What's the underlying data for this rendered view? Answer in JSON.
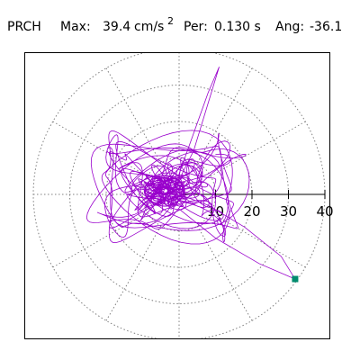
{
  "header": {
    "station": "PRCH",
    "max_label": "Max:",
    "max_value": "39.4",
    "max_unit": "cm/s",
    "max_unit_exp": "2",
    "per_label": "Per:",
    "per_value": "0.130 s",
    "ang_label": "Ang:",
    "ang_value": "-36.1"
  },
  "chart_data": {
    "type": "scatter",
    "title": "",
    "xlabel": "",
    "ylabel": "",
    "plot_kind": "polar particle-motion (hodogram)",
    "rlim": [
      0,
      40
    ],
    "radial_ticks": [
      10,
      20,
      30,
      40
    ],
    "radial_tick_labels": [
      "10",
      "20",
      "30",
      "40"
    ],
    "angular_gridlines_deg": [
      0,
      30,
      60,
      90,
      120,
      150,
      180,
      210,
      240,
      270,
      300,
      330
    ],
    "grid": true,
    "max_amplitude": 39.4,
    "max_angle_deg": -36.1,
    "max_point": {
      "r": 39.4,
      "angle_deg": -36.1
    },
    "line_color": "#9900cc",
    "marker_color": "#008c6e",
    "grid_color": "#808080",
    "trace": [
      {
        "x": 0,
        "y": 0
      },
      {
        "x": 8,
        "y": -3
      },
      {
        "x": 18,
        "y": -9
      },
      {
        "x": 28,
        "y": -17
      },
      {
        "x": 31.8,
        "y": -23.2
      },
      {
        "x": 22,
        "y": -19
      },
      {
        "x": 10,
        "y": -12
      },
      {
        "x": 0,
        "y": -4
      }
    ]
  }
}
